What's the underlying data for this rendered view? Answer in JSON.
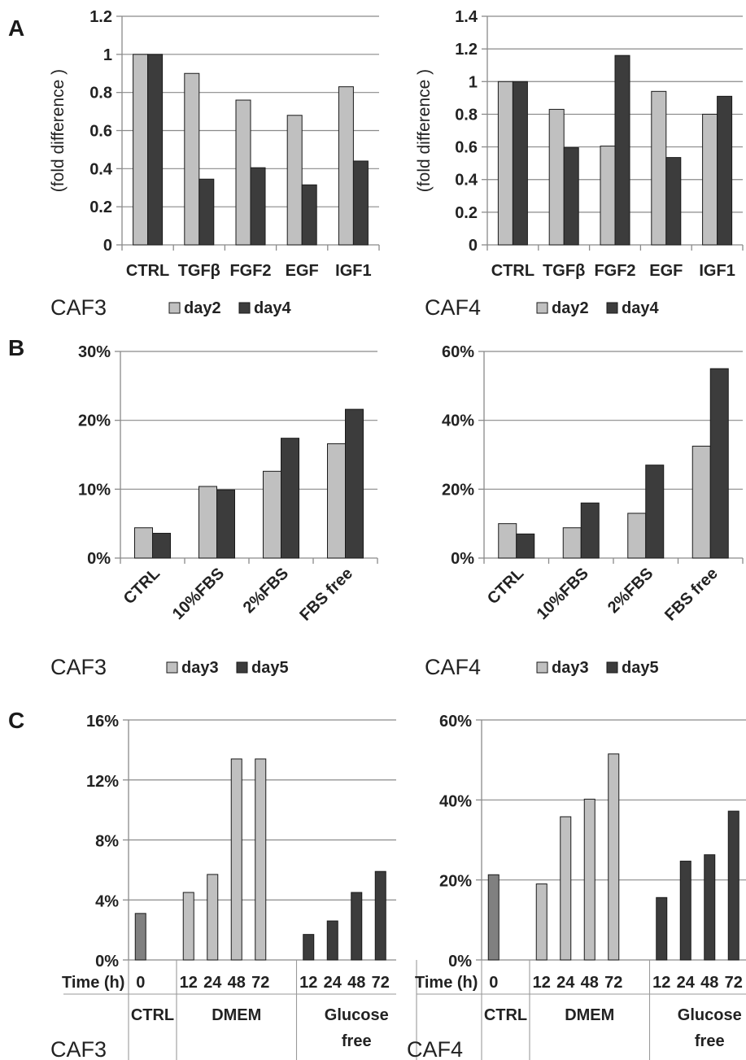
{
  "panels": [
    "A",
    "B",
    "C"
  ],
  "colors": {
    "light": "#c0c0c0",
    "dark": "#3c3c3c",
    "mid": "#808080",
    "grid": "#8a8a8a",
    "axis": "#8a8a8a"
  },
  "chart_data": [
    {
      "id": "A-CAF3",
      "type": "bar",
      "panel": "A",
      "caption": "CAF3",
      "categories": [
        "CTRL",
        "TGFβ",
        "FGF2",
        "EGF",
        "IGF1"
      ],
      "series": [
        {
          "name": "day2",
          "values": [
            1.0,
            0.9,
            0.76,
            0.68,
            0.83
          ]
        },
        {
          "name": "day4",
          "values": [
            1.0,
            0.345,
            0.405,
            0.315,
            0.44
          ]
        }
      ],
      "ylabel": "(fold difference )",
      "ylim": [
        0,
        1.2
      ],
      "yticks": [
        "0",
        "0.2",
        "0.4",
        "0.6",
        "0.8",
        "1",
        "1.2"
      ],
      "grid": true,
      "legend": "bottom"
    },
    {
      "id": "A-CAF4",
      "type": "bar",
      "panel": "A",
      "caption": "CAF4",
      "categories": [
        "CTRL",
        "TGFβ",
        "FGF2",
        "EGF",
        "IGF1"
      ],
      "series": [
        {
          "name": "day2",
          "values": [
            1.0,
            0.83,
            0.605,
            0.94,
            0.8
          ]
        },
        {
          "name": "day4",
          "values": [
            1.0,
            0.595,
            1.16,
            0.535,
            0.91
          ]
        }
      ],
      "ylabel": "(fold difference )",
      "ylim": [
        0,
        1.4
      ],
      "yticks": [
        "0",
        "0.2",
        "0.4",
        "0.6",
        "0.8",
        "1",
        "1.2",
        "1.4"
      ],
      "grid": true,
      "legend": "bottom"
    },
    {
      "id": "B-CAF3",
      "type": "bar",
      "panel": "B",
      "caption": "CAF3",
      "categories": [
        "CTRL",
        "10%FBS",
        "2%FBS",
        "FBS free"
      ],
      "series": [
        {
          "name": "day3",
          "values": [
            4.4,
            10.4,
            12.6,
            16.6
          ]
        },
        {
          "name": "day5",
          "values": [
            3.6,
            9.9,
            17.4,
            21.6
          ]
        }
      ],
      "ylim": [
        0,
        30
      ],
      "yticks": [
        "0%",
        "10%",
        "20%",
        "30%"
      ],
      "grid": true,
      "legend": "bottom"
    },
    {
      "id": "B-CAF4",
      "type": "bar",
      "panel": "B",
      "caption": "CAF4",
      "categories": [
        "CTRL",
        "10%FBS",
        "2%FBS",
        "FBS free"
      ],
      "series": [
        {
          "name": "day3",
          "values": [
            10.0,
            8.8,
            13.0,
            32.5
          ]
        },
        {
          "name": "day5",
          "values": [
            7.0,
            16.0,
            27.0,
            55.0
          ]
        }
      ],
      "ylim": [
        0,
        60
      ],
      "yticks": [
        "0%",
        "20%",
        "40%",
        "60%"
      ],
      "grid": true,
      "legend": "bottom"
    },
    {
      "id": "C-CAF3",
      "type": "bar",
      "panel": "C",
      "caption": "CAF3",
      "time_label": "Time (h)",
      "times": [
        "0",
        "12",
        "24",
        "48",
        "72",
        "12",
        "24",
        "48",
        "72"
      ],
      "groups": [
        {
          "label": "CTRL"
        },
        {
          "label": "DMEM"
        },
        {
          "label": "Glucose free"
        }
      ],
      "series": [
        {
          "group": "CTRL",
          "time": "0",
          "value": 3.1
        },
        {
          "group": "DMEM",
          "time": "12",
          "value": 4.5
        },
        {
          "group": "DMEM",
          "time": "24",
          "value": 5.7
        },
        {
          "group": "DMEM",
          "time": "48",
          "value": 13.4
        },
        {
          "group": "DMEM",
          "time": "72",
          "value": 13.4
        },
        {
          "group": "Glucose free",
          "time": "12",
          "value": 1.7
        },
        {
          "group": "Glucose free",
          "time": "24",
          "value": 2.6
        },
        {
          "group": "Glucose free",
          "time": "48",
          "value": 4.5
        },
        {
          "group": "Glucose free",
          "time": "72",
          "value": 5.9
        }
      ],
      "ylim": [
        0,
        16
      ],
      "yticks": [
        "0%",
        "4%",
        "8%",
        "12%",
        "16%"
      ],
      "grid": true
    },
    {
      "id": "C-CAF4",
      "type": "bar",
      "panel": "C",
      "caption": "CAF4",
      "time_label": "Time (h)",
      "times": [
        "0",
        "12",
        "24",
        "48",
        "72",
        "12",
        "24",
        "48",
        "72"
      ],
      "groups": [
        {
          "label": "CTRL"
        },
        {
          "label": "DMEM"
        },
        {
          "label": "Glucose free"
        }
      ],
      "series": [
        {
          "group": "CTRL",
          "time": "0",
          "value": 21.3
        },
        {
          "group": "DMEM",
          "time": "12",
          "value": 19.0
        },
        {
          "group": "DMEM",
          "time": "24",
          "value": 35.8
        },
        {
          "group": "DMEM",
          "time": "48",
          "value": 40.2
        },
        {
          "group": "DMEM",
          "time": "72",
          "value": 51.5
        },
        {
          "group": "Glucose free",
          "time": "12",
          "value": 15.6
        },
        {
          "group": "Glucose free",
          "time": "24",
          "value": 24.7
        },
        {
          "group": "Glucose free",
          "time": "48",
          "value": 26.3
        },
        {
          "group": "Glucose free",
          "time": "72",
          "value": 37.2
        }
      ],
      "ylim": [
        0,
        60
      ],
      "yticks": [
        "0%",
        "20%",
        "40%",
        "60%"
      ],
      "grid": true
    }
  ]
}
